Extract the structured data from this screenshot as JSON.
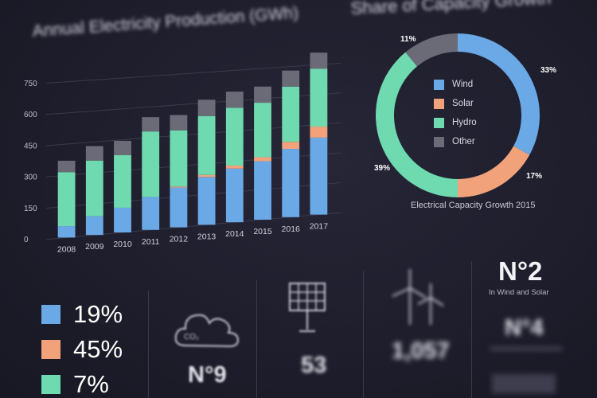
{
  "chart_data": [
    {
      "type": "bar",
      "title": "Annual Electricity Production (GWh)",
      "categories": [
        "2008",
        "2009",
        "2010",
        "2011",
        "2012",
        "2013",
        "2014",
        "2015",
        "2016",
        "2017"
      ],
      "ylim": [
        0,
        750
      ],
      "yticks": [
        "0",
        "150",
        "300",
        "450",
        "600",
        "750"
      ],
      "series": [
        {
          "name": "Wind",
          "color": "#6aa8e6",
          "values": [
            55,
            90,
            120,
            160,
            195,
            235,
            265,
            290,
            340,
            385
          ]
        },
        {
          "name": "Solar",
          "color": "#f2a27a",
          "values": [
            0,
            0,
            0,
            0,
            5,
            10,
            15,
            20,
            35,
            55
          ]
        },
        {
          "name": "Hydro",
          "color": "#6fd9b0",
          "values": [
            260,
            270,
            255,
            320,
            275,
            290,
            285,
            270,
            275,
            290
          ]
        },
        {
          "name": "Other",
          "color": "#6b6b78",
          "values": [
            55,
            70,
            70,
            70,
            75,
            80,
            80,
            80,
            80,
            80
          ]
        }
      ]
    },
    {
      "type": "pie",
      "title": "Share of Capacity Growth",
      "caption": "Electrical Capacity Growth 2015",
      "categories": [
        "Wind",
        "Solar",
        "Hydro",
        "Other"
      ],
      "values": [
        33,
        17,
        39,
        11
      ],
      "labels": [
        "33%",
        "17%",
        "39%",
        "11%"
      ],
      "colors": [
        "#6aa8e6",
        "#f2a27a",
        "#6fd9b0",
        "#6b6b78"
      ]
    }
  ],
  "bottom": {
    "percents": [
      {
        "value": "19%",
        "color": "#6aa8e6"
      },
      {
        "value": "45%",
        "color": "#f2a27a"
      },
      {
        "value": "7%",
        "color": "#6fd9b0"
      }
    ],
    "co2": {
      "icon": "co2-cloud-icon",
      "icon_text": "CO₂",
      "value": "N°9"
    },
    "solar": {
      "icon": "solar-panel-icon",
      "value": "53"
    },
    "wind": {
      "icon": "wind-turbine-icon",
      "value": "1,057"
    },
    "rank": {
      "title": "N°2",
      "subtitle": "In Wind and Solar",
      "value": "N°4"
    }
  }
}
